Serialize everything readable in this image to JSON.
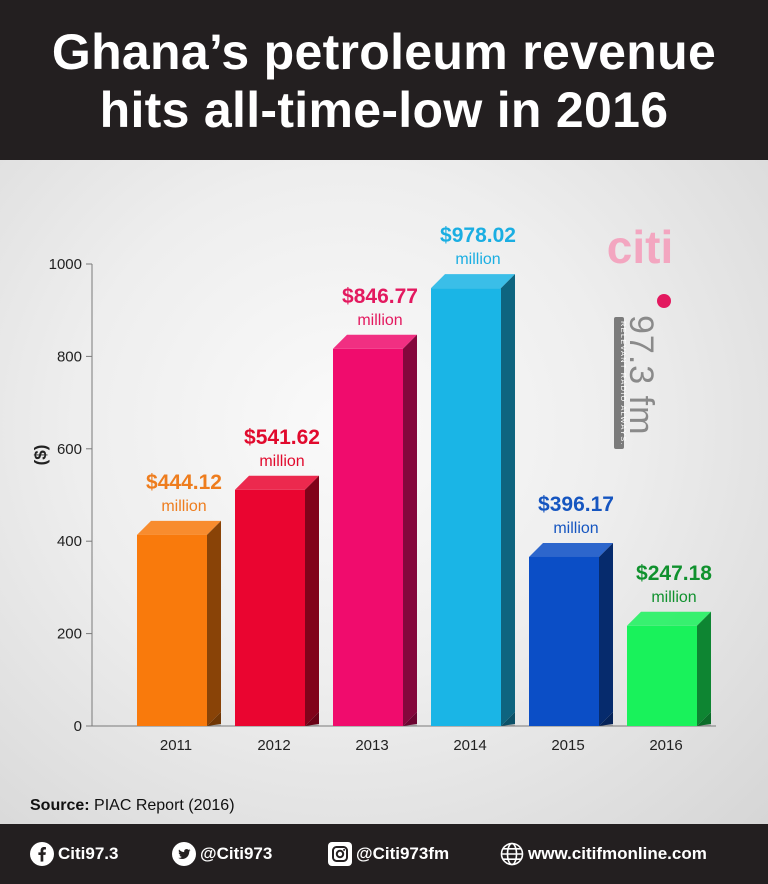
{
  "header": {
    "title_line1": "Ghana’s petroleum revenue",
    "title_line2": "hits all-time-low in 2016"
  },
  "logo": {
    "brand": "citi",
    "frequency": "97.3 fm",
    "tagline": "RELEVANT RADIO ALWAYS."
  },
  "chart_data": {
    "type": "bar",
    "title": "Ghana’s petroleum revenue hits all-time-low in 2016",
    "ylabel": "($)",
    "xlabel": "",
    "ylim": [
      0,
      1000
    ],
    "yticks": [
      0,
      200,
      400,
      600,
      800,
      1000
    ],
    "grid": false,
    "categories": [
      "2011",
      "2012",
      "2013",
      "2014",
      "2015",
      "2016"
    ],
    "values": [
      444.12,
      541.62,
      846.77,
      978.02,
      396.17,
      247.18
    ],
    "data_labels": [
      "$444.12",
      "$541.62",
      "$846.77",
      "$978.02",
      "$396.17",
      "$247.18"
    ],
    "data_label_unit": "million",
    "colors": [
      "#f97a0c",
      "#ea0530",
      "#f00c6d",
      "#1ab5e6",
      "#0b4ec6",
      "#19f25b"
    ],
    "label_colors": [
      "#ee7d1e",
      "#e10a2d",
      "#e3195f",
      "#1aaee2",
      "#1555c0",
      "#10912e"
    ]
  },
  "source": {
    "label": "Source:",
    "text": " PIAC Report (2016)"
  },
  "footer": {
    "facebook": "Citi97.3",
    "twitter": "@Citi973",
    "instagram": "@Citi973fm",
    "website": "www.citifmonline.com",
    "icons": [
      "facebook-icon",
      "twitter-icon",
      "instagram-icon",
      "globe-icon"
    ]
  }
}
